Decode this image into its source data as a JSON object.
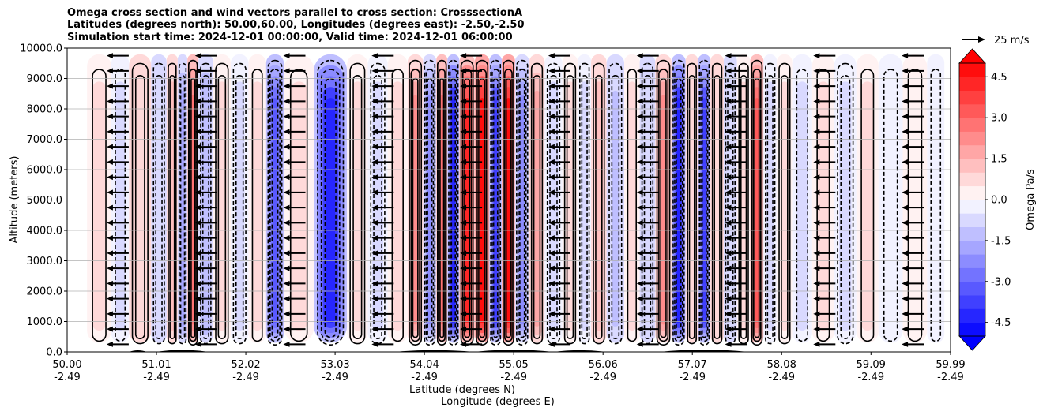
{
  "chart_data": {
    "type": "heatmap",
    "title_lines": [
      "Omega cross section and wind vectors parallel to cross section: CrosssectionA",
      "Latitudes (degrees north): 50.00,60.00, Longitudes (degrees east): -2.50,-2.50",
      "Simulation start time: 2024-12-01 00:00:00, Valid time: 2024-12-01 06:00:00"
    ],
    "ylabel": "Altitude (meters)",
    "xlabel_lat": "Latitude (degrees N)",
    "xlabel_lon": "Longitude (degrees E)",
    "ylim": [
      0,
      10000
    ],
    "y_ticks": [
      "0.0",
      "1000.0",
      "2000.0",
      "3000.0",
      "4000.0",
      "5000.0",
      "6000.0",
      "7000.0",
      "8000.0",
      "9000.0",
      "10000.0"
    ],
    "x_ticks": [
      {
        "lat": "50.00",
        "lon": "-2.49"
      },
      {
        "lat": "51.01",
        "lon": "-2.49"
      },
      {
        "lat": "52.02",
        "lon": "-2.49"
      },
      {
        "lat": "53.03",
        "lon": "-2.49"
      },
      {
        "lat": "54.04",
        "lon": "-2.49"
      },
      {
        "lat": "55.05",
        "lon": "-2.49"
      },
      {
        "lat": "56.06",
        "lon": "-2.49"
      },
      {
        "lat": "57.07",
        "lon": "-2.49"
      },
      {
        "lat": "58.08",
        "lon": "-2.49"
      },
      {
        "lat": "59.09",
        "lon": "-2.49"
      },
      {
        "lat": "59.99",
        "lon": "-2.49"
      }
    ],
    "xlim": [
      50.0,
      59.99
    ],
    "grid": true,
    "colorbar": {
      "label": "Omega Pa/s",
      "range": [
        -5,
        5
      ],
      "ticks": [
        "-4.5",
        "-3.0",
        "-1.5",
        "0.0",
        "1.5",
        "3.0",
        "4.5"
      ],
      "extend": "both",
      "colormap": "bwr"
    },
    "quiver_key": "25 m/s",
    "omega_bands": [
      {
        "lat": 50.45,
        "value": 0.6
      },
      {
        "lat": 50.55,
        "value": -0.6
      },
      {
        "lat": 50.85,
        "value": 1.0
      },
      {
        "lat": 51.05,
        "value": -1.2
      },
      {
        "lat": 51.2,
        "value": 1.2
      },
      {
        "lat": 51.3,
        "value": -2.0
      },
      {
        "lat": 51.42,
        "value": 3.0
      },
      {
        "lat": 51.55,
        "value": -1.6
      },
      {
        "lat": 51.75,
        "value": 0.8
      },
      {
        "lat": 51.95,
        "value": -0.8
      },
      {
        "lat": 52.15,
        "value": 0.5
      },
      {
        "lat": 52.35,
        "value": -3.5
      },
      {
        "lat": 52.55,
        "value": 0.6
      },
      {
        "lat": 53.03,
        "value": -5.0
      },
      {
        "lat": 53.3,
        "value": 0.8
      },
      {
        "lat": 53.5,
        "value": -0.8
      },
      {
        "lat": 53.75,
        "value": 0.6
      },
      {
        "lat": 53.95,
        "value": 2.5
      },
      {
        "lat": 54.1,
        "value": -2.5
      },
      {
        "lat": 54.25,
        "value": 3.0
      },
      {
        "lat": 54.35,
        "value": -5.0
      },
      {
        "lat": 54.52,
        "value": 4.5
      },
      {
        "lat": 54.7,
        "value": 5.0
      },
      {
        "lat": 54.85,
        "value": -4.0
      },
      {
        "lat": 54.98,
        "value": 5.0
      },
      {
        "lat": 55.15,
        "value": -2.5
      },
      {
        "lat": 55.3,
        "value": 2.0
      },
      {
        "lat": 55.5,
        "value": -1.0
      },
      {
        "lat": 55.7,
        "value": 0.8
      },
      {
        "lat": 55.85,
        "value": -0.8
      },
      {
        "lat": 56.0,
        "value": 1.2
      },
      {
        "lat": 56.2,
        "value": -1.5
      },
      {
        "lat": 56.4,
        "value": 0.6
      },
      {
        "lat": 56.55,
        "value": -1.2
      },
      {
        "lat": 56.75,
        "value": 2.5
      },
      {
        "lat": 56.92,
        "value": -5.0
      },
      {
        "lat": 57.07,
        "value": 1.0
      },
      {
        "lat": 57.2,
        "value": -4.0
      },
      {
        "lat": 57.35,
        "value": 1.0
      },
      {
        "lat": 57.5,
        "value": -1.2
      },
      {
        "lat": 57.65,
        "value": 0.8
      },
      {
        "lat": 57.8,
        "value": 3.5
      },
      {
        "lat": 57.95,
        "value": -1.0
      },
      {
        "lat": 58.1,
        "value": 0.8
      },
      {
        "lat": 58.3,
        "value": -0.6
      },
      {
        "lat": 58.55,
        "value": 0.6
      },
      {
        "lat": 58.8,
        "value": -0.8
      },
      {
        "lat": 59.05,
        "value": 0.5
      },
      {
        "lat": 59.3,
        "value": -0.4
      },
      {
        "lat": 59.6,
        "value": 0.4
      },
      {
        "lat": 59.85,
        "value": -0.4
      }
    ]
  }
}
